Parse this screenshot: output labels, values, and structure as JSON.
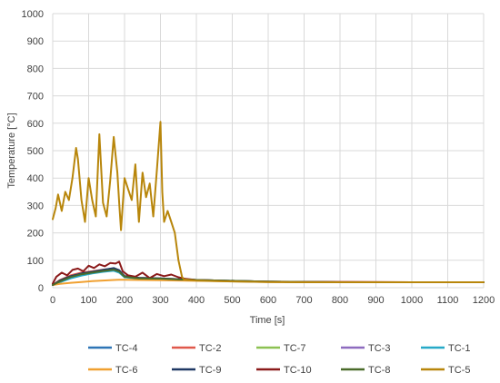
{
  "chart_data": {
    "type": "line",
    "title": "",
    "xlabel": "Time [s]",
    "ylabel": "Temperature [°C]",
    "xlim": [
      0,
      1200
    ],
    "ylim": [
      0,
      1000
    ],
    "x_ticks": [
      0,
      100,
      200,
      300,
      400,
      500,
      600,
      700,
      800,
      900,
      1000,
      1100,
      1200
    ],
    "y_ticks": [
      0,
      100,
      200,
      300,
      400,
      500,
      600,
      700,
      800,
      900,
      1000
    ],
    "grid": true,
    "legend_placement": "bottom",
    "series": [
      {
        "name": "TC-4",
        "color": "#2e75b6",
        "x": [
          0,
          20,
          50,
          80,
          110,
          140,
          170,
          185,
          200,
          240,
          300,
          350,
          400,
          600,
          800,
          1000,
          1200
        ],
        "y": [
          10,
          25,
          40,
          48,
          54,
          60,
          65,
          58,
          40,
          34,
          33,
          30,
          28,
          22,
          20,
          20,
          20
        ]
      },
      {
        "name": "TC-2",
        "color": "#e0584b",
        "x": [
          0,
          20,
          50,
          80,
          110,
          140,
          170,
          185,
          200,
          240,
          300,
          350,
          400,
          600,
          800,
          1000,
          1200
        ],
        "y": [
          10,
          28,
          45,
          55,
          60,
          66,
          70,
          62,
          42,
          36,
          34,
          31,
          28,
          22,
          21,
          20,
          20
        ]
      },
      {
        "name": "TC-7",
        "color": "#8cc152",
        "x": [
          0,
          20,
          50,
          80,
          110,
          140,
          170,
          185,
          200,
          240,
          300,
          350,
          400,
          600,
          800,
          1000,
          1200
        ],
        "y": [
          10,
          22,
          38,
          48,
          56,
          62,
          68,
          60,
          40,
          34,
          33,
          30,
          28,
          22,
          20,
          20,
          20
        ]
      },
      {
        "name": "TC-3",
        "color": "#8e6bbf",
        "x": [
          0,
          20,
          50,
          80,
          110,
          140,
          170,
          185,
          200,
          240,
          300,
          350,
          400,
          600,
          800,
          1000,
          1200
        ],
        "y": [
          10,
          24,
          40,
          50,
          57,
          64,
          70,
          63,
          41,
          35,
          34,
          31,
          28,
          22,
          20,
          20,
          20
        ]
      },
      {
        "name": "TC-1",
        "color": "#27a9c8",
        "x": [
          0,
          20,
          50,
          80,
          110,
          140,
          170,
          185,
          200,
          240,
          300,
          350,
          400,
          600,
          800,
          1000,
          1200
        ],
        "y": [
          10,
          20,
          34,
          44,
          52,
          58,
          62,
          55,
          38,
          33,
          32,
          29,
          27,
          22,
          20,
          20,
          20
        ]
      },
      {
        "name": "TC-6",
        "color": "#f0a030",
        "x": [
          0,
          20,
          50,
          80,
          110,
          140,
          170,
          185,
          200,
          240,
          300,
          350,
          400,
          600,
          800,
          1000,
          1200
        ],
        "y": [
          10,
          14,
          18,
          21,
          24,
          26,
          28,
          29,
          29,
          28,
          27,
          26,
          25,
          21,
          20,
          20,
          20
        ]
      },
      {
        "name": "TC-9",
        "color": "#1f3864",
        "x": [
          0,
          20,
          50,
          80,
          110,
          140,
          170,
          185,
          200,
          240,
          300,
          350,
          400,
          600,
          800,
          1000,
          1200
        ],
        "y": [
          10,
          26,
          42,
          52,
          58,
          65,
          72,
          64,
          42,
          36,
          34,
          31,
          28,
          22,
          20,
          20,
          20
        ]
      },
      {
        "name": "TC-10",
        "color": "#8b1a1a",
        "x": [
          0,
          10,
          25,
          40,
          55,
          70,
          85,
          100,
          115,
          130,
          145,
          160,
          175,
          185,
          195,
          210,
          230,
          250,
          270,
          290,
          310,
          330,
          350,
          370,
          400,
          500,
          600,
          800,
          1000,
          1200
        ],
        "y": [
          15,
          40,
          55,
          45,
          65,
          70,
          60,
          80,
          72,
          85,
          78,
          90,
          88,
          95,
          60,
          45,
          40,
          55,
          35,
          50,
          42,
          48,
          38,
          32,
          28,
          24,
          22,
          21,
          20,
          20
        ]
      },
      {
        "name": "TC-8",
        "color": "#4a6b2a",
        "x": [
          0,
          20,
          50,
          80,
          110,
          140,
          170,
          185,
          200,
          240,
          300,
          350,
          400,
          600,
          800,
          1000,
          1200
        ],
        "y": [
          10,
          23,
          39,
          49,
          55,
          61,
          66,
          59,
          40,
          34,
          33,
          30,
          28,
          22,
          20,
          20,
          20
        ]
      },
      {
        "name": "TC-5",
        "color": "#b8860b",
        "x": [
          0,
          8,
          15,
          25,
          35,
          45,
          55,
          65,
          70,
          80,
          90,
          100,
          110,
          120,
          130,
          140,
          150,
          160,
          170,
          180,
          185,
          190,
          200,
          210,
          220,
          230,
          240,
          250,
          260,
          270,
          280,
          290,
          300,
          305,
          310,
          320,
          330,
          340,
          350,
          360,
          365,
          380,
          400,
          500,
          600,
          700,
          800,
          1000,
          1200
        ],
        "y": [
          250,
          290,
          340,
          280,
          350,
          320,
          400,
          510,
          470,
          320,
          240,
          400,
          320,
          260,
          560,
          310,
          260,
          390,
          550,
          420,
          310,
          210,
          400,
          360,
          320,
          450,
          240,
          420,
          330,
          380,
          260,
          430,
          605,
          350,
          240,
          280,
          240,
          200,
          100,
          40,
          30,
          28,
          26,
          23,
          21,
          20,
          20,
          20,
          20
        ]
      }
    ]
  }
}
